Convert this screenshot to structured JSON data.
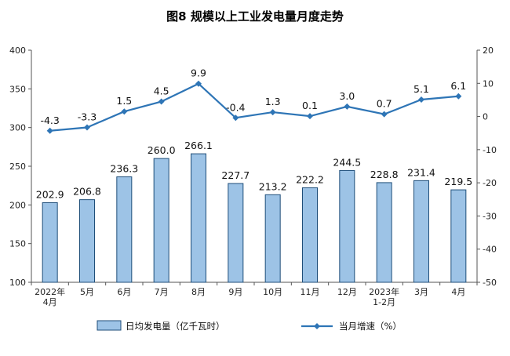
{
  "chart_data": {
    "type": "bar+line",
    "title": "图8  规模以上工业发电量月度走势",
    "categories": [
      "2022年|4月",
      "5月",
      "6月",
      "7月",
      "8月",
      "9月",
      "10月",
      "11月",
      "12月",
      "2023年|1-2月",
      "3月",
      "4月"
    ],
    "series": [
      {
        "name": "日均发电量（亿千瓦时）",
        "type": "bar",
        "axis": "left",
        "color": "#9DC3E6",
        "border": "#1F4E79",
        "values": [
          202.9,
          206.8,
          236.3,
          260.0,
          266.1,
          227.7,
          213.2,
          222.2,
          244.5,
          228.8,
          231.4,
          219.5
        ],
        "labels": [
          "202.9",
          "206.8",
          "236.3",
          "260.0",
          "266.1",
          "227.7",
          "213.2",
          "222.2",
          "244.5",
          "228.8",
          "231.4",
          "219.5"
        ]
      },
      {
        "name": "当月增速（%）",
        "type": "line",
        "axis": "right",
        "color": "#2E75B6",
        "values": [
          -4.3,
          -3.3,
          1.5,
          4.5,
          9.9,
          -0.4,
          1.3,
          0.1,
          3.0,
          0.7,
          5.1,
          6.1
        ],
        "labels": [
          "-4.3",
          "-3.3",
          "1.5",
          "4.5",
          "9.9",
          "-0.4",
          "1.3",
          "0.1",
          "3.0",
          "0.7",
          "5.1",
          "6.1"
        ]
      }
    ],
    "y_left": {
      "min": 100,
      "max": 400,
      "ticks": [
        "100",
        "150",
        "200",
        "250",
        "300",
        "350",
        "400"
      ]
    },
    "y_right": {
      "min": -50,
      "max": 20,
      "ticks": [
        "-50",
        "-40",
        "-30",
        "-20",
        "-10",
        "0",
        "10",
        "20"
      ]
    },
    "legend": "bottom",
    "grid": false
  }
}
